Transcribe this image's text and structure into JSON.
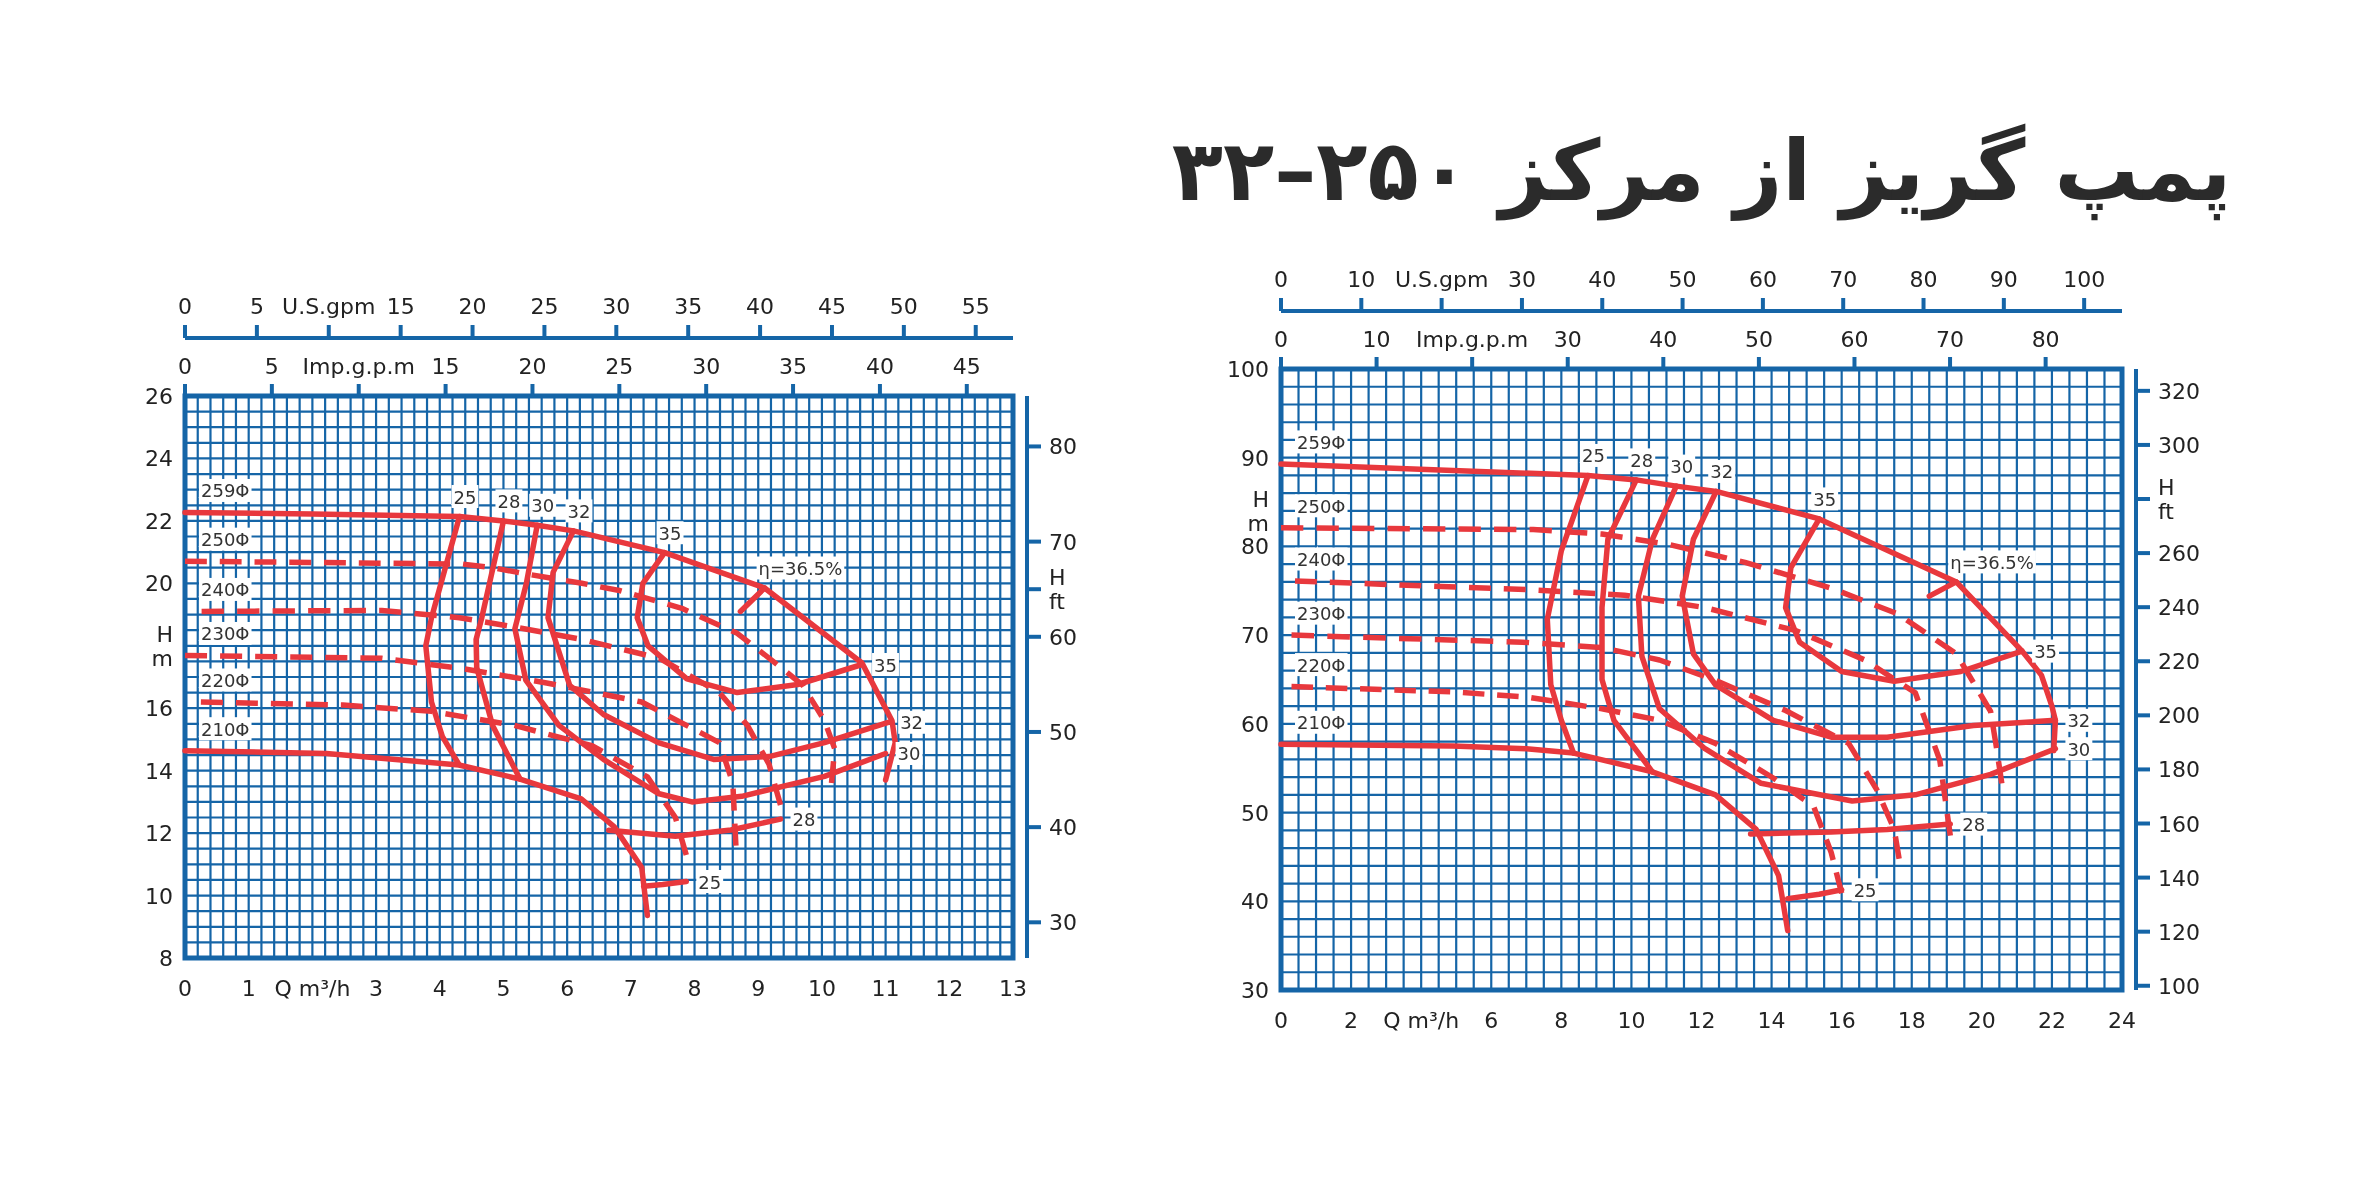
{
  "chart_data": [
    {
      "type": "other",
      "annotations": [
        "0",
        "5",
        "U.S.gpm",
        "15",
        "20",
        "25",
        "30",
        "35",
        "40",
        "45",
        "50",
        "55"
      ]
    },
    {
      "type": "line",
      "grid": true,
      "xlim": [
        0,
        13
      ],
      "ylim": [
        8,
        26
      ],
      "xticks": [
        0,
        {
          "value": 0.2,
          "label": null
        },
        {
          "value": 0.4,
          "label": null
        },
        {
          "value": 0.6,
          "label": null
        },
        {
          "value": 0.8,
          "label": null
        },
        1,
        {
          "value": 1.2,
          "label": null
        },
        {
          "value": 1.4,
          "label": null
        },
        {
          "value": 1.6,
          "label": null
        },
        {
          "value": 1.8,
          "label": null
        },
        {
          "value": 2,
          "label": "Q m³/h"
        },
        {
          "value": 2.2,
          "label": null
        },
        {
          "value": 2.4,
          "label": null
        },
        {
          "value": 2.6,
          "label": null
        },
        {
          "value": 2.8,
          "label": null
        },
        3,
        {
          "value": 3.2,
          "label": null
        },
        {
          "value": 3.4,
          "label": null
        },
        {
          "value": 3.6,
          "label": null
        },
        {
          "value": 3.8,
          "label": null
        },
        4,
        {
          "value": 4.2,
          "label": null
        },
        {
          "value": 4.4,
          "label": null
        },
        {
          "value": 4.6,
          "label": null
        },
        {
          "value": 4.8,
          "label": null
        },
        5,
        {
          "value": 5.2,
          "label": null
        },
        {
          "value": 5.4,
          "label": null
        },
        {
          "value": 5.6,
          "label": null
        },
        {
          "value": 5.8,
          "label": null
        },
        6,
        {
          "value": 6.2,
          "label": null
        },
        {
          "value": 6.4,
          "label": null
        },
        {
          "value": 6.6,
          "label": null
        },
        {
          "value": 6.8,
          "label": null
        },
        7,
        {
          "value": 7.2,
          "label": null
        },
        {
          "value": 7.4,
          "label": null
        },
        {
          "value": 7.6,
          "label": null
        },
        {
          "value": 7.8,
          "label": null
        },
        8,
        {
          "value": 8.2,
          "label": null
        },
        {
          "value": 8.4,
          "label": null
        },
        {
          "value": 8.6,
          "label": null
        },
        {
          "value": 8.8,
          "label": null
        },
        9,
        {
          "value": 9.2,
          "label": null
        },
        {
          "value": 9.4,
          "label": null
        },
        {
          "value": 9.6,
          "label": null
        },
        {
          "value": 9.8,
          "label": null
        },
        10,
        {
          "value": 10.2,
          "label": null
        },
        {
          "value": 10.4,
          "label": null
        },
        {
          "value": 10.6,
          "label": null
        },
        {
          "value": 10.8,
          "label": null
        },
        11,
        {
          "value": 11.2,
          "label": null
        },
        {
          "value": 11.4,
          "label": null
        },
        {
          "value": 11.6,
          "label": null
        },
        {
          "value": 11.8,
          "label": null
        },
        12,
        {
          "value": 12.2,
          "label": null
        },
        {
          "value": 12.4,
          "label": null
        },
        {
          "value": 12.6,
          "label": null
        },
        {
          "value": 12.8,
          "label": null
        },
        13
      ],
      "yticks": [
        8,
        {
          "value": 8.5,
          "label": null
        },
        {
          "value": 9,
          "label": null
        },
        {
          "value": 9.5,
          "label": null
        },
        10,
        {
          "value": 10.5,
          "label": null
        },
        {
          "value": 11,
          "label": null
        },
        {
          "value": 11.5,
          "label": null
        },
        12,
        {
          "value": 12.5,
          "label": null
        },
        {
          "value": 13,
          "label": null
        },
        {
          "value": 13.5,
          "label": null
        },
        14,
        {
          "value": 14.5,
          "label": null
        },
        {
          "value": 15,
          "label": null
        },
        {
          "value": 15.5,
          "label": null
        },
        16,
        {
          "value": 16.5,
          "label": null
        },
        {
          "value": 17,
          "label": null
        },
        {
          "value": 17.5,
          "label": null
        },
        {
          "value": 18,
          "label": "H\nm"
        },
        {
          "value": 18.5,
          "label": null
        },
        {
          "value": 19,
          "label": null
        },
        {
          "value": 19.5,
          "label": null
        },
        20,
        {
          "value": 20.5,
          "label": null
        },
        {
          "value": 21,
          "label": null
        },
        {
          "value": 21.5,
          "label": null
        },
        22,
        {
          "value": 22.5,
          "label": null
        },
        {
          "value": 23,
          "label": null
        },
        {
          "value": 23.5,
          "label": null
        },
        24,
        {
          "value": 24.5,
          "label": null
        },
        {
          "value": 25,
          "label": null
        },
        {
          "value": 25.5,
          "label": null
        },
        26
      ],
      "y2lim": [
        26.25,
        85.3
      ],
      "y2ticks": [
        30,
        40,
        50,
        60,
        {
          "value": 65,
          "label": "H\nft"
        },
        70,
        80
      ],
      "x2lim": [
        0,
        47.66
      ],
      "x2ticks": [
        0,
        5,
        {
          "value": 10,
          "label": "Imp.g.p.m"
        },
        15,
        20,
        25,
        30,
        35,
        40,
        45
      ],
      "series": [
        {
          "name": "259Φ",
          "color": "#e8383d",
          "line_style": "solid",
          "x": [
            0,
            2,
            4.31,
            5.0,
            5.53,
            6.1,
            7.53,
            9.1,
            10.63,
            11.1,
            11.15,
            11.0
          ],
          "values": [
            22.27,
            22.22,
            22.14,
            22.0,
            21.86,
            21.68,
            20.98,
            19.85,
            17.45,
            15.6,
            14.9,
            13.7
          ]
        },
        {
          "name": "250Φ",
          "color": "#e8383d",
          "line_style": "dashed",
          "x": [
            0,
            4.35,
            4.83,
            5.36,
            6.23,
            6.84,
            7.8,
            8.67,
            9.36,
            9.7,
            10.04,
            10.2,
            10.15
          ],
          "values": [
            20.71,
            20.62,
            20.5,
            20.3,
            20.0,
            19.76,
            19.2,
            18.4,
            17.3,
            16.73,
            15.6,
            14.7,
            13.6
          ]
        },
        {
          "name": "240Φ",
          "color": "#e8383d",
          "line_style": "dashed",
          "x": [
            0.26,
            3.09,
            4.31,
            5.18,
            6.23,
            7.45,
            8.39,
            8.83,
            9.17,
            9.35
          ],
          "values": [
            19.1,
            19.13,
            18.9,
            18.6,
            18.2,
            17.6,
            16.5,
            15.45,
            14.2,
            12.9
          ]
        },
        {
          "name": "230Φ",
          "color": "#e8383d",
          "line_style": "dashed",
          "x": [
            0,
            3.09,
            4.35,
            5.7,
            7.17,
            8.39,
            8.6,
            8.65
          ],
          "values": [
            17.69,
            17.6,
            17.27,
            16.8,
            16.2,
            14.9,
            13.6,
            11.6
          ]
        },
        {
          "name": "220Φ",
          "color": "#e8383d",
          "line_style": "dashed",
          "x": [
            0.25,
            2.48,
            3.87,
            5.17,
            6.39,
            7.26,
            7.7,
            7.87
          ],
          "values": [
            16.2,
            16.1,
            15.9,
            15.45,
            14.8,
            13.8,
            12.5,
            11.3
          ]
        },
        {
          "name": "210Φ",
          "color": "#e8383d",
          "line_style": "solid",
          "x": [
            0,
            2.22,
            4.3,
            5.26,
            6.22,
            6.74,
            7.17,
            7.26
          ],
          "values": [
            14.64,
            14.55,
            14.18,
            13.73,
            13.1,
            12.2,
            10.9,
            9.36
          ]
        },
        {
          "name": "25",
          "color": "#e8383d",
          "line_style": "solid",
          "x": [
            4.31,
            3.87,
            3.78,
            3.87,
            4.04,
            4.3,
            null,
            7.2,
            7.5,
            7.87
          ],
          "values": [
            22.14,
            18.9,
            18.0,
            16.2,
            15.1,
            14.2,
            null,
            10.3,
            10.35,
            10.45
          ]
        },
        {
          "name": "28",
          "color": "#e8383d",
          "line_style": "solid",
          "x": [
            5.0,
            4.66,
            4.57,
            4.58,
            4.83,
            5.26,
            null,
            6.65,
            7.7,
            8.57,
            9.35
          ],
          "values": [
            22.0,
            18.9,
            18.2,
            17.3,
            15.45,
            13.73,
            null,
            12.09,
            11.9,
            12.1,
            12.45
          ]
        },
        {
          "name": "30",
          "color": "#e8383d",
          "line_style": "solid",
          "x": [
            5.53,
            5.36,
            5.18,
            5.35,
            5.87,
            6.57,
            7.43,
            7.96,
            8.74,
            10.04,
            11.0
          ],
          "values": [
            21.86,
            20.0,
            18.55,
            16.9,
            15.45,
            14.36,
            13.27,
            13.0,
            13.18,
            13.82,
            14.55
          ]
        },
        {
          "name": "32",
          "color": "#e8383d",
          "line_style": "solid",
          "x": [
            6.1,
            5.78,
            5.7,
            6.04,
            6.57,
            7.43,
            8.3,
            9.17,
            10.04,
            11.04
          ],
          "values": [
            21.68,
            20.35,
            18.9,
            16.73,
            15.8,
            14.9,
            14.36,
            14.45,
            14.9,
            15.55
          ]
        },
        {
          "name": "35",
          "color": "#e8383d",
          "line_style": "solid",
          "x": [
            7.53,
            7.19,
            7.1,
            7.27,
            7.88,
            8.67,
            9.62,
            10.63
          ],
          "values": [
            20.98,
            20.0,
            18.9,
            18.0,
            16.94,
            16.5,
            16.76,
            17.4
          ]
        },
        {
          "name": "η=36.5%",
          "color": "#e8383d",
          "line_style": "solid",
          "x": [
            9.1,
            8.72
          ],
          "values": [
            19.85,
            19.1
          ]
        }
      ]
    },
    {
      "type": "other",
      "title": "پمپ گریز از مرکز ۲۵۰–۳۲",
      "annotations": [
        "0",
        "10",
        "U.S.gpm",
        "30",
        "40",
        "50",
        "60",
        "70",
        "80",
        "90",
        "100"
      ]
    },
    {
      "type": "line",
      "grid": true,
      "xlim": [
        0,
        24
      ],
      "ylim": [
        30,
        100
      ],
      "xticks": [
        0,
        {
          "value": 0.5,
          "label": null
        },
        {
          "value": 1,
          "label": null
        },
        {
          "value": 1.5,
          "label": null
        },
        2,
        {
          "value": 2.5,
          "label": null
        },
        {
          "value": 3,
          "label": null
        },
        {
          "value": 3.5,
          "label": null
        },
        {
          "value": 4,
          "label": "Q m³/h"
        },
        {
          "value": 4.5,
          "label": null
        },
        {
          "value": 5,
          "label": null
        },
        {
          "value": 5.5,
          "label": null
        },
        6,
        {
          "value": 6.5,
          "label": null
        },
        {
          "value": 7,
          "label": null
        },
        {
          "value": 7.5,
          "label": null
        },
        8,
        {
          "value": 8.5,
          "label": null
        },
        {
          "value": 9,
          "label": null
        },
        {
          "value": 9.5,
          "label": null
        },
        10,
        {
          "value": 10.5,
          "label": null
        },
        {
          "value": 11,
          "label": null
        },
        {
          "value": 11.5,
          "label": null
        },
        12,
        {
          "value": 12.5,
          "label": null
        },
        {
          "value": 13,
          "label": null
        },
        {
          "value": 13.5,
          "label": null
        },
        14,
        {
          "value": 14.5,
          "label": null
        },
        {
          "value": 15,
          "label": null
        },
        {
          "value": 15.5,
          "label": null
        },
        16,
        {
          "value": 16.5,
          "label": null
        },
        {
          "value": 17,
          "label": null
        },
        {
          "value": 17.5,
          "label": null
        },
        18,
        {
          "value": 18.5,
          "label": null
        },
        {
          "value": 19,
          "label": null
        },
        {
          "value": 19.5,
          "label": null
        },
        20,
        {
          "value": 20.5,
          "label": null
        },
        {
          "value": 21,
          "label": null
        },
        {
          "value": 21.5,
          "label": null
        },
        22,
        {
          "value": 22.5,
          "label": null
        },
        {
          "value": 23,
          "label": null
        },
        {
          "value": 23.5,
          "label": null
        },
        24
      ],
      "yticks": [
        30,
        {
          "value": 32,
          "label": null
        },
        {
          "value": 34,
          "label": null
        },
        {
          "value": 36,
          "label": null
        },
        {
          "value": 38,
          "label": null
        },
        40,
        {
          "value": 42,
          "label": null
        },
        {
          "value": 44,
          "label": null
        },
        {
          "value": 46,
          "label": null
        },
        {
          "value": 48,
          "label": null
        },
        50,
        {
          "value": 52,
          "label": null
        },
        {
          "value": 54,
          "label": null
        },
        {
          "value": 56,
          "label": null
        },
        {
          "value": 58,
          "label": null
        },
        60,
        {
          "value": 62,
          "label": null
        },
        {
          "value": 64,
          "label": null
        },
        {
          "value": 66,
          "label": null
        },
        {
          "value": 68,
          "label": null
        },
        70,
        {
          "value": 72,
          "label": null
        },
        {
          "value": 74,
          "label": null
        },
        {
          "value": 76,
          "label": null
        },
        {
          "value": 78,
          "label": null
        },
        80,
        {
          "value": 82,
          "label": null
        },
        {
          "value": 84,
          "label": "H\nm"
        },
        {
          "value": 86,
          "label": null
        },
        {
          "value": 88,
          "label": null
        },
        90,
        {
          "value": 92,
          "label": null
        },
        {
          "value": 94,
          "label": null
        },
        {
          "value": 96,
          "label": null
        },
        {
          "value": 98,
          "label": null
        },
        100
      ],
      "y2lim": [
        98.43,
        328.08
      ],
      "y2ticks": [
        100,
        120,
        140,
        160,
        180,
        200,
        220,
        240,
        260,
        {
          "value": 280,
          "label": "H\nft"
        },
        300,
        320
      ],
      "x2lim": [
        0,
        87.99
      ],
      "x2ticks": [
        0,
        10,
        {
          "value": 20,
          "label": "Imp.g.p.m"
        },
        30,
        40,
        50,
        60,
        70,
        80
      ],
      "series": [
        {
          "name": "259Φ",
          "color": "#e8383d",
          "line_style": "solid",
          "x": [
            0,
            8.76,
            10.14,
            11.28,
            12.42,
            15.36,
            19.27,
            21.15,
            21.7,
            22.0,
            22.1,
            22.05
          ],
          "values": [
            89.3,
            88.0,
            87.5,
            86.8,
            86.2,
            83.1,
            76.0,
            68.2,
            65.5,
            62.0,
            60.4,
            57.0
          ]
        },
        {
          "name": "250Φ",
          "color": "#e8383d",
          "line_style": "dashed",
          "x": [
            0,
            7.2,
            9.16,
            11.1,
            13.24,
            15.7,
            17.6,
            19.27,
            20.25,
            20.4,
            20.57
          ],
          "values": [
            82.1,
            81.9,
            81.4,
            80.2,
            78.2,
            75.3,
            72.4,
            67.9,
            61.4,
            57.8,
            53.3
          ]
        },
        {
          "name": "240Φ",
          "color": "#e8383d",
          "line_style": "dashed",
          "x": [
            0.4,
            7.2,
            9.8,
            12.1,
            14.7,
            16.66,
            18.1,
            18.8,
            19.1
          ],
          "values": [
            76.1,
            75.1,
            74.5,
            73.1,
            70.5,
            67.2,
            63.5,
            55.9,
            47.4
          ]
        },
        {
          "name": "230Φ",
          "color": "#e8383d",
          "line_style": "dashed",
          "x": [
            0.3,
            6.9,
            9.16,
            10.8,
            12.4,
            14.4,
            16.2,
            17.0,
            17.5,
            17.64
          ],
          "values": [
            70.0,
            69.2,
            68.6,
            67.2,
            64.9,
            61.5,
            57.8,
            52.6,
            48.1,
            44.8
          ]
        },
        {
          "name": "220Φ",
          "color": "#e8383d",
          "line_style": "dashed",
          "x": [
            0.3,
            4.9,
            7.05,
            9.16,
            10.8,
            12.4,
            14.05,
            15.2,
            15.7,
            16.0
          ],
          "values": [
            64.2,
            63.6,
            63.0,
            61.7,
            60.4,
            57.8,
            53.9,
            50.7,
            45.5,
            40.9
          ]
        },
        {
          "name": "210Φ",
          "color": "#e8383d",
          "line_style": "solid",
          "x": [
            0,
            4.9,
            7.0,
            8.35,
            10.6,
            12.4,
            13.56,
            14.2,
            14.46
          ],
          "values": [
            57.7,
            57.5,
            57.2,
            56.7,
            54.6,
            52.0,
            48.1,
            42.9,
            36.7
          ]
        },
        {
          "name": "25",
          "color": "#e8383d",
          "line_style": "solid",
          "x": [
            8.76,
            8.0,
            7.6,
            7.7,
            8.0,
            8.35,
            null,
            14.46,
            15.36,
            16.0
          ],
          "values": [
            88.0,
            79.5,
            71.8,
            64.4,
            60.4,
            56.7,
            null,
            40.3,
            40.8,
            41.3
          ]
        },
        {
          "name": "28",
          "color": "#e8383d",
          "line_style": "solid",
          "x": [
            10.14,
            9.33,
            9.16,
            9.16,
            9.5,
            10.6,
            null,
            13.4,
            15.7,
            17.3,
            19.1
          ],
          "values": [
            87.5,
            80.8,
            73.1,
            65.0,
            60.4,
            54.6,
            null,
            47.6,
            47.8,
            48.1,
            48.7
          ]
        },
        {
          "name": "30",
          "color": "#e8383d",
          "line_style": "solid",
          "x": [
            11.28,
            10.6,
            10.2,
            10.3,
            10.8,
            12.1,
            13.7,
            16.3,
            18.1,
            20.25,
            22.1
          ],
          "values": [
            86.8,
            80.8,
            74.4,
            67.6,
            61.7,
            57.2,
            53.3,
            51.3,
            52.0,
            54.3,
            57.2
          ]
        },
        {
          "name": "32",
          "color": "#e8383d",
          "line_style": "solid",
          "x": [
            12.42,
            11.77,
            11.45,
            11.77,
            12.4,
            14.05,
            15.7,
            17.3,
            19.76,
            22.1
          ],
          "values": [
            86.2,
            80.8,
            74.4,
            67.9,
            64.4,
            60.4,
            58.5,
            58.5,
            59.8,
            60.4
          ]
        },
        {
          "name": "35",
          "color": "#e8383d",
          "line_style": "solid",
          "x": [
            15.36,
            14.55,
            14.4,
            14.8,
            16.0,
            17.5,
            19.4,
            21.15
          ],
          "values": [
            83.1,
            77.6,
            73.1,
            69.2,
            65.9,
            64.8,
            65.9,
            68.2
          ]
        },
        {
          "name": "η=36.5%",
          "color": "#e8383d",
          "line_style": "solid",
          "x": [
            19.27,
            18.5
          ],
          "values": [
            76.0,
            74.4
          ]
        }
      ]
    }
  ]
}
